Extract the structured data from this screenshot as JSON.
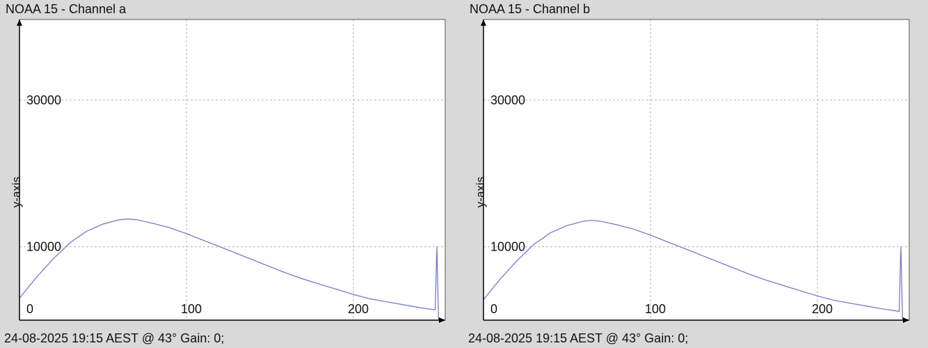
{
  "colors": {
    "background": "#d9d9d9",
    "plot_bg": "#ffffff",
    "grid": "#b0b0b0",
    "axis": "#000000",
    "series": "#6b6fc9"
  },
  "chart_data": [
    {
      "type": "line",
      "title": "NOAA 15 - Channel a",
      "footer": "24-08-2025 19:15 AEST @ 43° Gain: 0;",
      "xlabel": "",
      "ylabel": "y-axis",
      "xlim": [
        0,
        255
      ],
      "ylim": [
        0,
        41000
      ],
      "xticks": [
        0,
        100,
        200
      ],
      "yticks": [
        10000,
        30000
      ],
      "grid": true,
      "series": [
        {
          "x": [
            0,
            10,
            20,
            30,
            40,
            50,
            60,
            65,
            70,
            80,
            90,
            100,
            110,
            120,
            130,
            140,
            150,
            160,
            170,
            180,
            190,
            200,
            210,
            220,
            230,
            240,
            249,
            250,
            251
          ],
          "y": [
            3000,
            5800,
            8300,
            10500,
            12100,
            13100,
            13700,
            13800,
            13700,
            13200,
            12600,
            11800,
            10900,
            10000,
            9100,
            8200,
            7300,
            6400,
            5600,
            4900,
            4200,
            3500,
            2900,
            2500,
            2100,
            1700,
            1400,
            10000,
            0
          ]
        }
      ]
    },
    {
      "type": "line",
      "title": "NOAA 15 - Channel b",
      "footer": "24-08-2025 19:15 AEST @ 43° Gain: 0;",
      "xlabel": "",
      "ylabel": "y-axis",
      "xlim": [
        0,
        255
      ],
      "ylim": [
        0,
        41000
      ],
      "xticks": [
        0,
        100,
        200
      ],
      "yticks": [
        10000,
        30000
      ],
      "grid": true,
      "series": [
        {
          "x": [
            0,
            10,
            20,
            30,
            40,
            50,
            60,
            65,
            70,
            80,
            90,
            100,
            110,
            120,
            130,
            140,
            150,
            160,
            170,
            180,
            190,
            200,
            210,
            220,
            230,
            240,
            249,
            250,
            251
          ],
          "y": [
            2800,
            5600,
            8100,
            10300,
            11900,
            12900,
            13500,
            13600,
            13500,
            13000,
            12400,
            11600,
            10700,
            9800,
            8900,
            8000,
            7100,
            6200,
            5400,
            4700,
            4000,
            3300,
            2700,
            2300,
            1900,
            1500,
            1200,
            10000,
            0
          ]
        }
      ]
    }
  ]
}
